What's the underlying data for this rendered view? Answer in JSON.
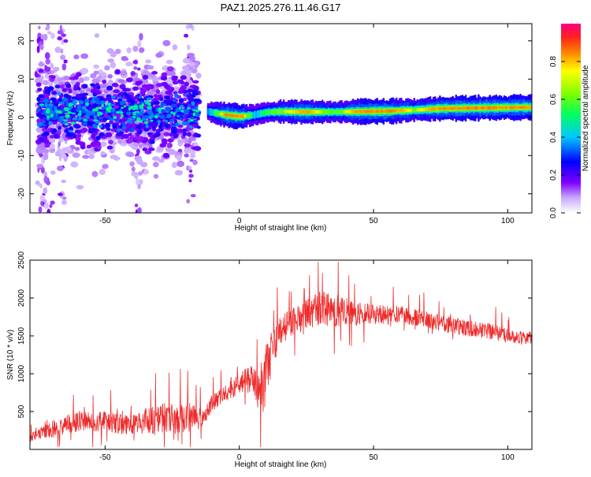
{
  "chart_data": [
    {
      "type": "heatmap",
      "title": "PAZ1.2025.276.11.46.G17",
      "xlabel": "Height of straight line (km)",
      "ylabel": "Frequency (Hz)",
      "xlim": [
        -78,
        109
      ],
      "ylim": [
        -25,
        24.5
      ],
      "xticks": [
        -50,
        0,
        50,
        100
      ],
      "yticks": [
        -20,
        -10,
        0,
        10,
        20
      ],
      "colorbar": {
        "label": "Normalized spectral amplitude",
        "range": [
          0,
          1
        ],
        "ticks": [
          0.0,
          0.2,
          0.4,
          0.6,
          0.8
        ]
      },
      "ridge": [
        {
          "x": -12,
          "f": 1.5,
          "amp": 0.35
        },
        {
          "x": -5,
          "f": 0.6,
          "amp": 0.9
        },
        {
          "x": 0,
          "f": 0.2,
          "amp": 0.95
        },
        {
          "x": 5,
          "f": 0.6,
          "amp": 0.45
        },
        {
          "x": 10,
          "f": 1.3,
          "amp": 0.55
        },
        {
          "x": 15,
          "f": 1.5,
          "amp": 0.7
        },
        {
          "x": 25,
          "f": 1.4,
          "amp": 0.85
        },
        {
          "x": 35,
          "f": 1.4,
          "amp": 0.6
        },
        {
          "x": 45,
          "f": 1.5,
          "amp": 0.9
        },
        {
          "x": 55,
          "f": 1.6,
          "amp": 0.95
        },
        {
          "x": 65,
          "f": 1.9,
          "amp": 0.7
        },
        {
          "x": 75,
          "f": 2.3,
          "amp": 0.9
        },
        {
          "x": 85,
          "f": 2.4,
          "amp": 0.95
        },
        {
          "x": 95,
          "f": 2.5,
          "amp": 0.95
        },
        {
          "x": 105,
          "f": 2.6,
          "amp": 0.9
        }
      ],
      "noise_region": {
        "x_range": [
          -75,
          -15
        ],
        "f_center": 1.5,
        "f_spread": 6
      }
    },
    {
      "type": "line",
      "xlabel": "Height of straight line (km)",
      "ylabel": "SNR (10 * v/v)",
      "xlim": [
        -78,
        109
      ],
      "ylim": [
        0,
        2500
      ],
      "xticks": [
        -50,
        0,
        50,
        100
      ],
      "yticks": [
        500,
        1000,
        1500,
        2000,
        2500
      ],
      "series": [
        {
          "name": "SNR",
          "color": "#ee2a2a",
          "x": [
            -78,
            -70,
            -60,
            -55,
            -50,
            -45,
            -40,
            -35,
            -30,
            -25,
            -20,
            -15,
            -12,
            -10,
            -5,
            0,
            5,
            7,
            8,
            10,
            12,
            15,
            20,
            25,
            30,
            35,
            40,
            50,
            60,
            70,
            80,
            90,
            95,
            100,
            109
          ],
          "mean": [
            150,
            270,
            370,
            360,
            380,
            330,
            330,
            370,
            390,
            430,
            440,
            410,
            500,
            620,
            750,
            860,
            950,
            750,
            650,
            1000,
            1300,
            1560,
            1700,
            1780,
            1860,
            1850,
            1820,
            1780,
            1780,
            1720,
            1630,
            1580,
            1550,
            1500,
            1470
          ],
          "amp": [
            80,
            170,
            200,
            180,
            200,
            200,
            180,
            250,
            300,
            330,
            300,
            200,
            160,
            160,
            160,
            200,
            300,
            350,
            380,
            600,
            450,
            280,
            280,
            300,
            320,
            320,
            280,
            180,
            170,
            160,
            160,
            150,
            150,
            130,
            120
          ]
        }
      ]
    }
  ]
}
